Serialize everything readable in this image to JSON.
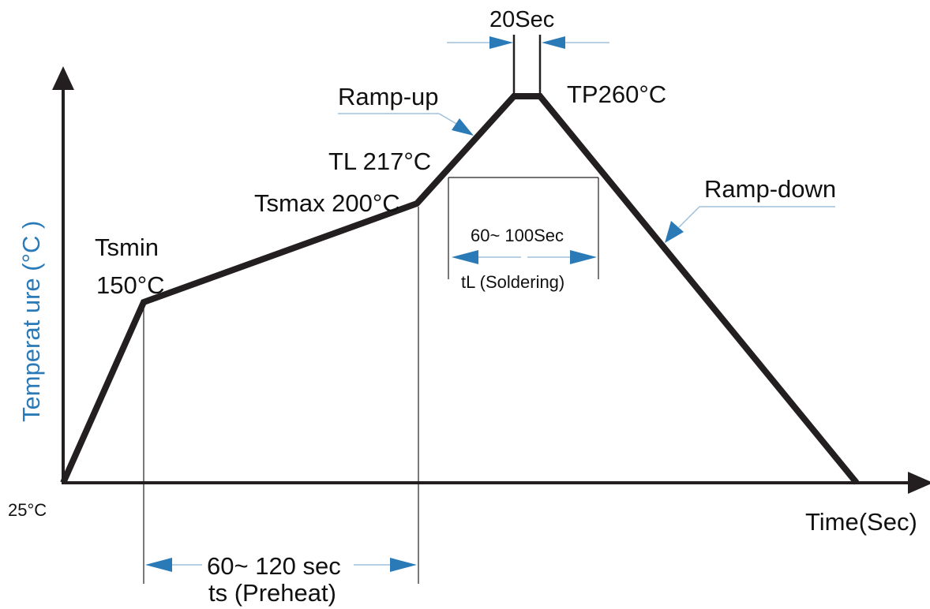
{
  "axes": {
    "y_label": "Temperat ure (°C  )",
    "x_label": "Time(Sec)",
    "origin_label": "25°C"
  },
  "labels": {
    "peak_dwell": "20Sec",
    "peak_temp": "TP260°C",
    "ramp_up": "Ramp-up",
    "ramp_down": "Ramp-down",
    "tl": "TL 217°C",
    "tsmax": "Tsmax 200°C",
    "tsmin_line1": "Tsmin",
    "tsmin_line2": "150°C",
    "liquidus_time": "60~ 100Sec",
    "liquidus_name": "tL (Soldering)",
    "preheat_time": "60~ 120 sec",
    "preheat_name": "ts (Preheat)"
  },
  "profile_points": [
    {
      "name": "start",
      "temp_c": 25
    },
    {
      "name": "Tsmin",
      "temp_c": 150
    },
    {
      "name": "Tsmax",
      "temp_c": 200
    },
    {
      "name": "TL",
      "temp_c": 217
    },
    {
      "name": "TP start",
      "temp_c": 260
    },
    {
      "name": "TP end",
      "temp_c": 260
    },
    {
      "name": "end",
      "temp_c": 25
    }
  ],
  "colors": {
    "curve": "#231f20",
    "axis": "#231f20",
    "arrow_blue": "#2a7ab8",
    "y_label": "#2a7ab8"
  }
}
